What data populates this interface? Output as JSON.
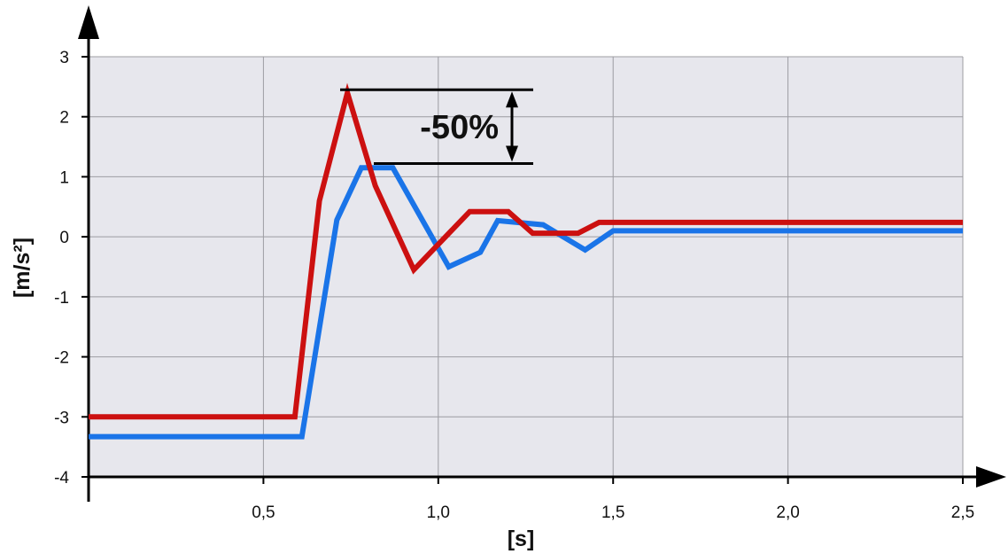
{
  "chart_data": {
    "type": "line",
    "title": "",
    "xlabel": "[s]",
    "ylabel": "[m/s²]",
    "xlim": [
      0,
      2.5
    ],
    "ylim": [
      -4,
      3
    ],
    "grid": true,
    "x_ticks": [
      {
        "value": 0.5,
        "label": "0,5"
      },
      {
        "value": 1.0,
        "label": "1,0"
      },
      {
        "value": 1.5,
        "label": "1,5"
      },
      {
        "value": 2.0,
        "label": "2,0"
      },
      {
        "value": 2.5,
        "label": "2,5"
      }
    ],
    "y_ticks": [
      {
        "value": 3,
        "label": "3"
      },
      {
        "value": 2,
        "label": "2"
      },
      {
        "value": 1,
        "label": "1"
      },
      {
        "value": 0,
        "label": "0"
      },
      {
        "value": -1,
        "label": "-1"
      },
      {
        "value": -2,
        "label": "-2"
      },
      {
        "value": -3,
        "label": "-3"
      },
      {
        "value": -4,
        "label": "-4"
      }
    ],
    "series": [
      {
        "color": "#1a74e8",
        "points": [
          [
            0,
            -3.33
          ],
          [
            0.61,
            -3.33
          ],
          [
            0.71,
            0.28
          ],
          [
            0.78,
            1.15
          ],
          [
            0.87,
            1.15
          ],
          [
            1.03,
            -0.5
          ],
          [
            1.12,
            -0.26
          ],
          [
            1.17,
            0.27
          ],
          [
            1.3,
            0.2
          ],
          [
            1.42,
            -0.22
          ],
          [
            1.5,
            0.1
          ],
          [
            2.5,
            0.1
          ]
        ]
      },
      {
        "color": "#cc1010",
        "points": [
          [
            0,
            -3.0
          ],
          [
            0.59,
            -3.0
          ],
          [
            0.66,
            0.6
          ],
          [
            0.74,
            2.4
          ],
          [
            0.82,
            0.85
          ],
          [
            0.93,
            -0.55
          ],
          [
            1.09,
            0.42
          ],
          [
            1.2,
            0.42
          ],
          [
            1.27,
            0.06
          ],
          [
            1.4,
            0.06
          ],
          [
            1.46,
            0.24
          ],
          [
            2.5,
            0.24
          ]
        ]
      }
    ],
    "annotations": [
      {
        "text": "-50%",
        "from_y": 2.45,
        "to_y": 1.22
      }
    ]
  }
}
